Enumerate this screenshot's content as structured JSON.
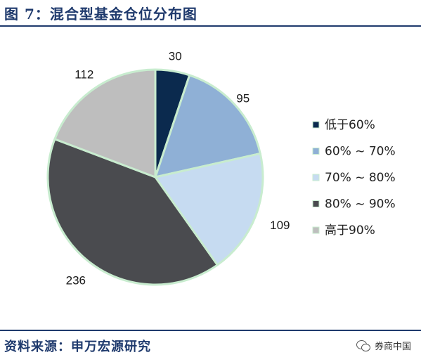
{
  "header": {
    "title": "图 7：混合型基金仓位分布图"
  },
  "footer": {
    "source": "资料来源：申万宏源研究",
    "watermark": "券商中国"
  },
  "colors": {
    "accent": "#1f3a6d",
    "slice_border": "#c8eccf",
    "slices": [
      "#0b2a4e",
      "#8fb0d6",
      "#c6dbf1",
      "#4a4b4f",
      "#bebebe"
    ]
  },
  "chart_data": {
    "type": "pie",
    "title": "",
    "categories": [
      "低于60%",
      "60% ~ 70%",
      "70% ~ 80%",
      "80% ~ 90%",
      "高于90%"
    ],
    "values": [
      30,
      95,
      109,
      236,
      112
    ],
    "data_labels": [
      "30",
      "95",
      "109",
      "236",
      "112"
    ],
    "start_angle": "12 o'clock",
    "direction": "clockwise",
    "legend": "right"
  }
}
